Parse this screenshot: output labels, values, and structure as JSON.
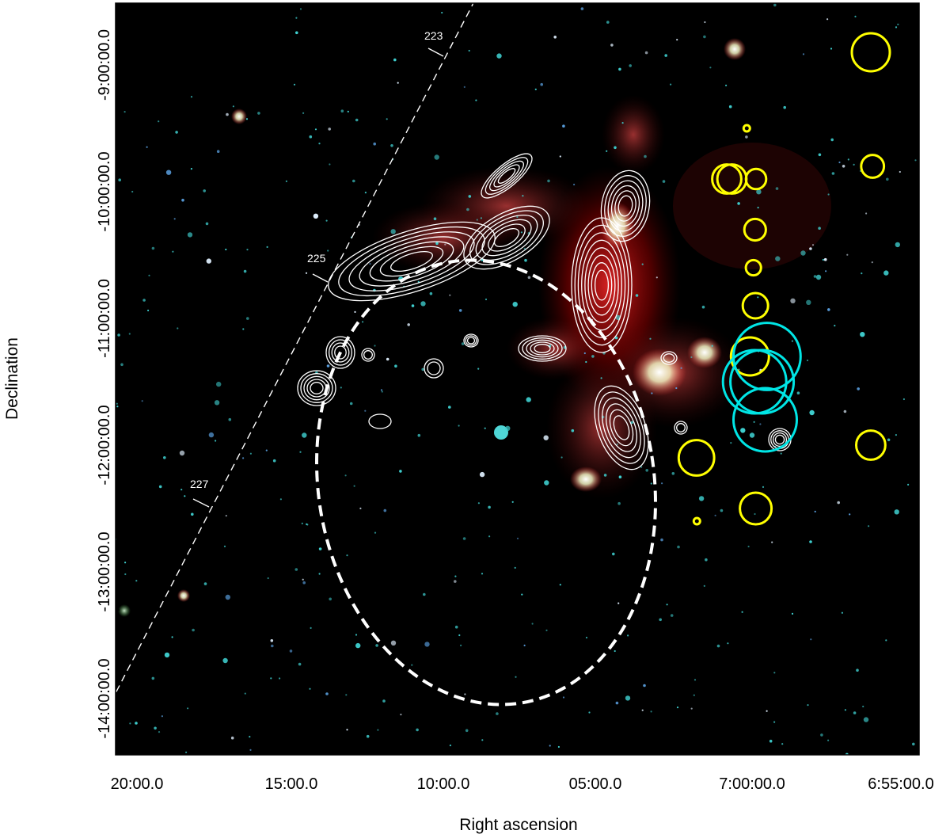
{
  "chart_data": {
    "type": "scatter",
    "title": "",
    "xlabel": "Right ascension",
    "ylabel": "Declination",
    "x_ticks": [
      "20:00.0",
      "15:00.0",
      "10:00.0",
      "05:00.0",
      "7:00:00.0",
      "6:55:00.0"
    ],
    "y_ticks": [
      "-9:00:00.0",
      "-10:00:00.0",
      "-11:00:00.0",
      "-12:00:00.0",
      "-13:00:00.0",
      "-14:00:00.0"
    ],
    "galactic_longitude_labels": [
      "223",
      "225",
      "227"
    ],
    "ellipse_color": "#ffffff",
    "contour_color": "#ffffff",
    "yellow_circle_color": "#ffff00",
    "cyan_circle_color": "#00e5e5",
    "background": "#000000",
    "yellow_circles": [
      {
        "ra_sec": 59.1,
        "dec_arcmin": -8.9,
        "radius_arcmin": 0.3
      },
      {
        "ra_sec": 55.6,
        "dec_arcmin": -9.8,
        "radius_arcmin": 0.18
      },
      {
        "ra_sec": 302.6,
        "dec_arcmin": -9.5,
        "radius_arcmin": 0.05
      },
      {
        "ra_sec": 284.4,
        "dec_arcmin": -9.9,
        "radius_arcmin": 0.16
      },
      {
        "ra_sec": 286.3,
        "dec_arcmin": -10.3,
        "radius_arcmin": 0.17
      },
      {
        "ra_sec": 289.6,
        "dec_arcmin": -10.6,
        "radius_arcmin": 0.12
      },
      {
        "ra_sec": 285.7,
        "dec_arcmin": -10.9,
        "radius_arcmin": 0.2
      },
      {
        "ra_sec": 342.0,
        "dec_arcmin": -9.9,
        "radius_arcmin": 0.23
      },
      {
        "ra_sec": 331.9,
        "dec_arcmin": -9.9,
        "radius_arcmin": 0.23
      },
      {
        "ra_sec": 296.4,
        "dec_arcmin": -11.3,
        "radius_arcmin": 0.3
      },
      {
        "ra_sec": 401.5,
        "dec_arcmin": -12.1,
        "radius_arcmin": 0.28
      },
      {
        "ra_sec": 400.5,
        "dec_arcmin": -12.6,
        "radius_arcmin": 0.05
      },
      {
        "ra_sec": 285.0,
        "dec_arcmin": -12.5,
        "radius_arcmin": 0.25
      },
      {
        "ra_sec": 59.3,
        "dec_arcmin": -12.0,
        "radius_arcmin": 0.23
      }
    ],
    "cyan_circles": [
      {
        "ra_sec": 287.3,
        "dec_arcmin": -11.5,
        "radius_arcmin": 0.5
      },
      {
        "ra_sec": 272.6,
        "dec_arcmin": -11.5,
        "radius_arcmin": 0.5
      },
      {
        "ra_sec": 262.8,
        "dec_arcmin": -11.3,
        "radius_arcmin": 0.53
      },
      {
        "ra_sec": 266.6,
        "dec_arcmin": -11.8,
        "radius_arcmin": 0.5
      }
    ],
    "dashed_ellipse": {
      "center_ra_sec": 343.0,
      "center_dec_arcmin": -12.3,
      "a_arcmin": 1.85,
      "b_arcmin": 1.25
    },
    "axis_ranges": {
      "ra": [
        "7:20:00.0",
        "6:55:00.0"
      ],
      "dec": [
        "-8:50:00",
        "-14:20:00"
      ]
    },
    "grid": false,
    "legend": "none"
  }
}
